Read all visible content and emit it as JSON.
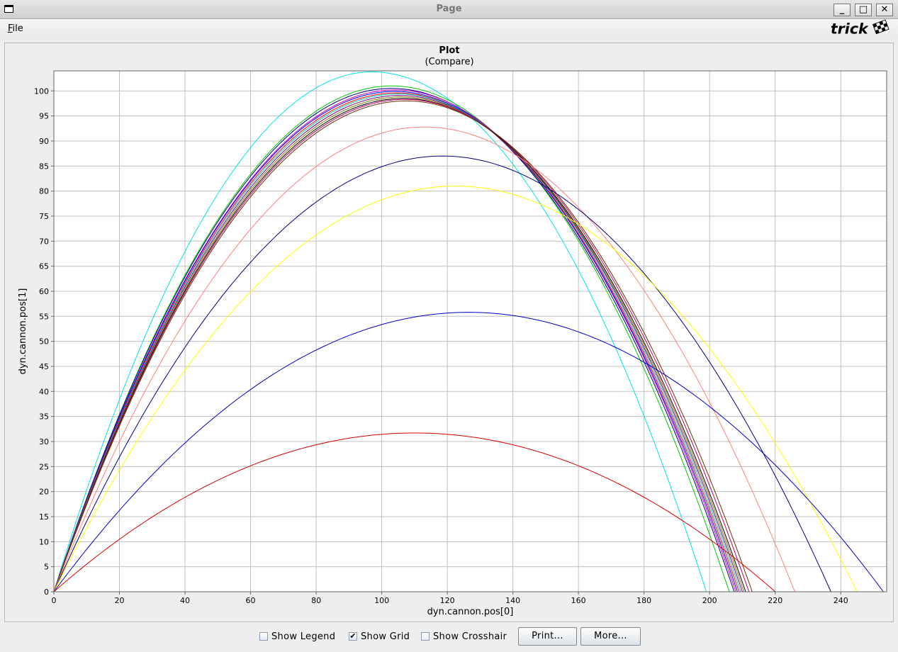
{
  "window": {
    "title": "Page",
    "minimize": "_",
    "maximize": "□",
    "close": "✕"
  },
  "menu": {
    "file": "File"
  },
  "logo": {
    "text": "trick"
  },
  "controls": {
    "show_legend": {
      "label": "Show Legend",
      "checked": false
    },
    "show_grid": {
      "label": "Show Grid",
      "checked": true
    },
    "show_crosshair": {
      "label": "Show Crosshair",
      "checked": false
    },
    "print_label": "Print...",
    "more_label": "More..."
  },
  "chart_data": {
    "type": "line",
    "title": "Plot",
    "subtitle": "(Compare)",
    "xlabel": "dyn.cannon.pos[0]",
    "ylabel": "dyn.cannon.pos[1]",
    "xlim": [
      0,
      254
    ],
    "ylim": [
      0,
      104
    ],
    "xticks": [
      0,
      20,
      40,
      60,
      80,
      100,
      120,
      140,
      160,
      180,
      200,
      220,
      240
    ],
    "yticks": [
      0,
      5,
      10,
      15,
      20,
      25,
      30,
      35,
      40,
      45,
      50,
      55,
      60,
      65,
      70,
      75,
      80,
      85,
      90,
      95,
      100
    ],
    "grid": true,
    "legend": false,
    "series": [
      {
        "color": "#00e5e5",
        "range": 199,
        "peak_x": 97,
        "peak_y": 103.8
      },
      {
        "color": "#00c800",
        "range": 206,
        "peak_x": 103,
        "peak_y": 101.0
      },
      {
        "color": "#000080",
        "range": 207.5,
        "peak_x": 103,
        "peak_y": 100.5
      },
      {
        "color": "#c800c8",
        "range": 208,
        "peak_x": 104,
        "peak_y": 100.2
      },
      {
        "color": "#0000ff",
        "range": 208.5,
        "peak_x": 104,
        "peak_y": 99.9
      },
      {
        "color": "#ff0000",
        "range": 209,
        "peak_x": 104.5,
        "peak_y": 99.6
      },
      {
        "color": "#00c8c8",
        "range": 209.5,
        "peak_x": 105,
        "peak_y": 99.4
      },
      {
        "color": "#800080",
        "range": 210,
        "peak_x": 105.5,
        "peak_y": 99.1
      },
      {
        "color": "#808000",
        "range": 210.5,
        "peak_x": 106,
        "peak_y": 98.8
      },
      {
        "color": "#000000",
        "range": 211,
        "peak_x": 106.5,
        "peak_y": 98.5
      },
      {
        "color": "#cc0066",
        "range": 212,
        "peak_x": 107,
        "peak_y": 98.3
      },
      {
        "color": "#663300",
        "range": 213,
        "peak_x": 107.5,
        "peak_y": 98.0
      },
      {
        "color": "#ff8080",
        "range": 226,
        "peak_x": 113,
        "peak_y": 92.8
      },
      {
        "color": "#000080",
        "range": 237,
        "peak_x": 118.5,
        "peak_y": 87.0
      },
      {
        "color": "#ffff00",
        "range": 245,
        "peak_x": 122.5,
        "peak_y": 81.0
      },
      {
        "color": "#0000c8",
        "range": 253,
        "peak_x": 126.5,
        "peak_y": 55.8
      },
      {
        "color": "#d80000",
        "range": 220,
        "peak_x": 110,
        "peak_y": 31.7
      }
    ]
  }
}
